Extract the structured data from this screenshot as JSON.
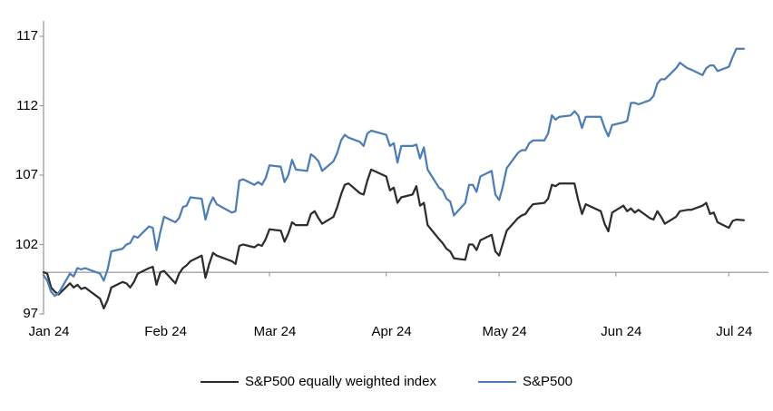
{
  "chart_data": {
    "type": "line",
    "title": "",
    "xlabel": "",
    "ylabel": "",
    "x_unit": "day_of_year_2024",
    "xlim": [
      1,
      192
    ],
    "ylim": [
      97,
      118.2
    ],
    "y_ticks": [
      97,
      102,
      107,
      112,
      117
    ],
    "x_ticks": [
      {
        "doy": 1,
        "label": "Jan 24"
      },
      {
        "doy": 32,
        "label": "Feb 24"
      },
      {
        "doy": 61,
        "label": "Mar 24"
      },
      {
        "doy": 92,
        "label": "Apr 24"
      },
      {
        "doy": 122,
        "label": "May 24"
      },
      {
        "doy": 153,
        "label": "Jun 24"
      },
      {
        "doy": 183,
        "label": "Jul 24"
      }
    ],
    "baseline_value": 100,
    "grid": "horizontal-axis-at-100-only",
    "legend_position": "bottom-center",
    "series": [
      {
        "name": "S&P500 equally weighted index",
        "color": "#2d2d2d",
        "x": [
          1,
          2,
          3,
          4,
          5,
          8,
          9,
          10,
          11,
          12,
          16,
          17,
          18,
          19,
          22,
          23,
          24,
          25,
          26,
          29,
          30,
          31,
          32,
          33,
          36,
          37,
          38,
          39,
          40,
          43,
          44,
          45,
          46,
          47,
          51,
          52,
          53,
          54,
          57,
          58,
          59,
          60,
          61,
          64,
          65,
          66,
          67,
          68,
          71,
          72,
          73,
          74,
          75,
          78,
          79,
          80,
          81,
          82,
          85,
          86,
          87,
          88,
          92,
          93,
          94,
          95,
          96,
          99,
          100,
          101,
          102,
          103,
          106,
          107,
          108,
          109,
          110,
          113,
          114,
          115,
          116,
          117,
          120,
          121,
          122,
          123,
          124,
          127,
          128,
          129,
          130,
          131,
          134,
          135,
          136,
          137,
          138,
          141,
          142,
          143,
          144,
          145,
          149,
          150,
          151,
          152,
          155,
          156,
          157,
          158,
          159,
          162,
          163,
          164,
          165,
          166,
          169,
          170,
          172,
          173,
          176,
          177,
          178,
          179,
          180,
          183,
          184,
          185,
          187
        ],
        "values": [
          100.0,
          99.9,
          98.9,
          98.6,
          98.4,
          99.2,
          98.9,
          99.1,
          98.8,
          98.9,
          98.1,
          97.4,
          98.0,
          98.9,
          99.3,
          99.2,
          98.9,
          99.3,
          99.9,
          100.3,
          100.4,
          99.1,
          100.0,
          100.1,
          99.2,
          99.9,
          100.3,
          100.5,
          100.8,
          101.2,
          99.6,
          100.6,
          101.4,
          101.2,
          100.8,
          100.6,
          101.9,
          102.0,
          101.8,
          102.0,
          101.9,
          102.4,
          103.1,
          103.0,
          102.2,
          102.8,
          103.6,
          103.4,
          103.4,
          104.2,
          104.4,
          103.9,
          103.5,
          104.0,
          104.7,
          105.6,
          106.3,
          106.4,
          105.7,
          105.6,
          106.6,
          107.4,
          106.9,
          105.9,
          106.1,
          105.0,
          105.4,
          105.6,
          106.2,
          104.8,
          105.0,
          103.4,
          102.4,
          102.1,
          101.7,
          101.5,
          101.0,
          100.9,
          102.0,
          102.0,
          101.6,
          102.3,
          102.7,
          101.5,
          101.2,
          102.1,
          103.0,
          103.9,
          104.1,
          104.2,
          104.6,
          104.9,
          105.0,
          105.3,
          106.3,
          106.2,
          106.4,
          106.4,
          106.4,
          105.2,
          104.2,
          104.9,
          104.4,
          103.5,
          102.95,
          104.3,
          104.8,
          104.4,
          104.6,
          104.3,
          104.5,
          103.9,
          103.8,
          104.4,
          104.0,
          103.5,
          104.0,
          104.4,
          104.5,
          104.5,
          104.8,
          105.0,
          104.2,
          104.3,
          103.6,
          103.2,
          103.7,
          103.8,
          103.75
        ]
      },
      {
        "name": "S&P500",
        "color": "#4e7db5",
        "x": [
          1,
          2,
          3,
          4,
          5,
          8,
          9,
          10,
          11,
          12,
          16,
          17,
          18,
          19,
          22,
          23,
          24,
          25,
          26,
          29,
          30,
          31,
          32,
          33,
          36,
          37,
          38,
          39,
          40,
          43,
          44,
          45,
          46,
          47,
          51,
          52,
          53,
          54,
          57,
          58,
          59,
          60,
          61,
          64,
          65,
          66,
          67,
          68,
          71,
          72,
          73,
          74,
          75,
          78,
          79,
          80,
          81,
          82,
          85,
          86,
          87,
          88,
          92,
          93,
          94,
          95,
          96,
          99,
          100,
          101,
          102,
          103,
          106,
          107,
          108,
          109,
          110,
          113,
          114,
          115,
          116,
          117,
          120,
          121,
          122,
          123,
          124,
          127,
          128,
          129,
          130,
          131,
          134,
          135,
          136,
          137,
          138,
          141,
          142,
          143,
          144,
          145,
          149,
          150,
          151,
          152,
          155,
          156,
          157,
          158,
          159,
          162,
          163,
          164,
          165,
          166,
          169,
          170,
          172,
          173,
          176,
          177,
          178,
          179,
          180,
          183,
          184,
          185,
          187
        ],
        "values": [
          99.8,
          99.4,
          98.6,
          98.3,
          98.5,
          99.9,
          99.7,
          100.3,
          100.2,
          100.3,
          99.9,
          99.4,
          100.2,
          101.5,
          101.7,
          102.0,
          102.1,
          102.6,
          102.5,
          103.3,
          103.2,
          101.6,
          102.9,
          104.0,
          103.6,
          103.9,
          104.7,
          104.8,
          105.4,
          105.3,
          103.8,
          104.8,
          105.4,
          104.9,
          104.3,
          104.4,
          106.6,
          106.7,
          106.3,
          106.5,
          106.3,
          106.8,
          107.7,
          107.6,
          106.5,
          107.0,
          108.1,
          107.4,
          107.3,
          108.5,
          108.3,
          108.0,
          107.3,
          108.0,
          108.6,
          109.5,
          109.9,
          109.7,
          109.4,
          109.1,
          110.0,
          110.2,
          109.9,
          109.1,
          109.3,
          107.9,
          109.1,
          109.1,
          109.2,
          108.2,
          109.0,
          107.4,
          106.1,
          105.9,
          105.3,
          105.1,
          104.1,
          105.0,
          106.3,
          106.3,
          105.8,
          106.9,
          107.3,
          105.6,
          105.2,
          106.2,
          107.5,
          108.6,
          108.8,
          108.8,
          109.3,
          109.5,
          109.5,
          110.0,
          111.3,
          111.0,
          111.2,
          111.3,
          111.6,
          111.3,
          110.4,
          111.2,
          111.2,
          110.4,
          109.8,
          110.6,
          110.8,
          110.9,
          112.2,
          112.2,
          112.1,
          112.4,
          112.7,
          113.6,
          113.9,
          113.9,
          114.7,
          115.1,
          114.7,
          114.6,
          114.2,
          114.7,
          114.9,
          114.9,
          114.5,
          114.8,
          115.5,
          116.1,
          116.1
        ]
      }
    ]
  },
  "colors": {
    "background": "#ffffff",
    "axis": "#9b9b9b",
    "text": "#000000",
    "sp500_equal_weight": "#2d2d2d",
    "sp500": "#4e7db5"
  }
}
